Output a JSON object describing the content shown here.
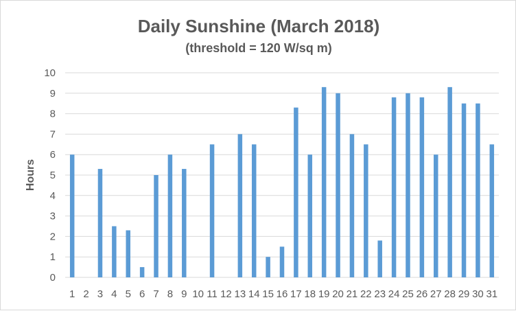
{
  "chart_data": {
    "type": "bar",
    "title": "Daily Sunshine (March 2018)",
    "subtitle": "(threshold = 120 W/sq m)",
    "xlabel": "",
    "ylabel": "Hours",
    "ylim": [
      0,
      10
    ],
    "yticks": [
      "0",
      "1",
      "2",
      "3",
      "4",
      "5",
      "6",
      "7",
      "8",
      "9",
      "10"
    ],
    "categories": [
      "1",
      "2",
      "3",
      "4",
      "5",
      "6",
      "7",
      "8",
      "9",
      "10",
      "11",
      "12",
      "13",
      "14",
      "15",
      "16",
      "17",
      "18",
      "19",
      "20",
      "21",
      "22",
      "23",
      "24",
      "25",
      "26",
      "27",
      "28",
      "29",
      "30",
      "31"
    ],
    "values": [
      6,
      0,
      5.3,
      2.5,
      2.3,
      0.5,
      5,
      6,
      5.3,
      0,
      6.5,
      0,
      7,
      6.5,
      1,
      1.5,
      8.3,
      6,
      9.3,
      9,
      7,
      6.5,
      1.8,
      8.8,
      9,
      8.8,
      6,
      9.3,
      8.5,
      8.5,
      6.5
    ],
    "grid": true,
    "legend": "none",
    "bar_color": "#5b9bd5",
    "grid_color": "#d9d9d9",
    "text_color": "#595959"
  }
}
